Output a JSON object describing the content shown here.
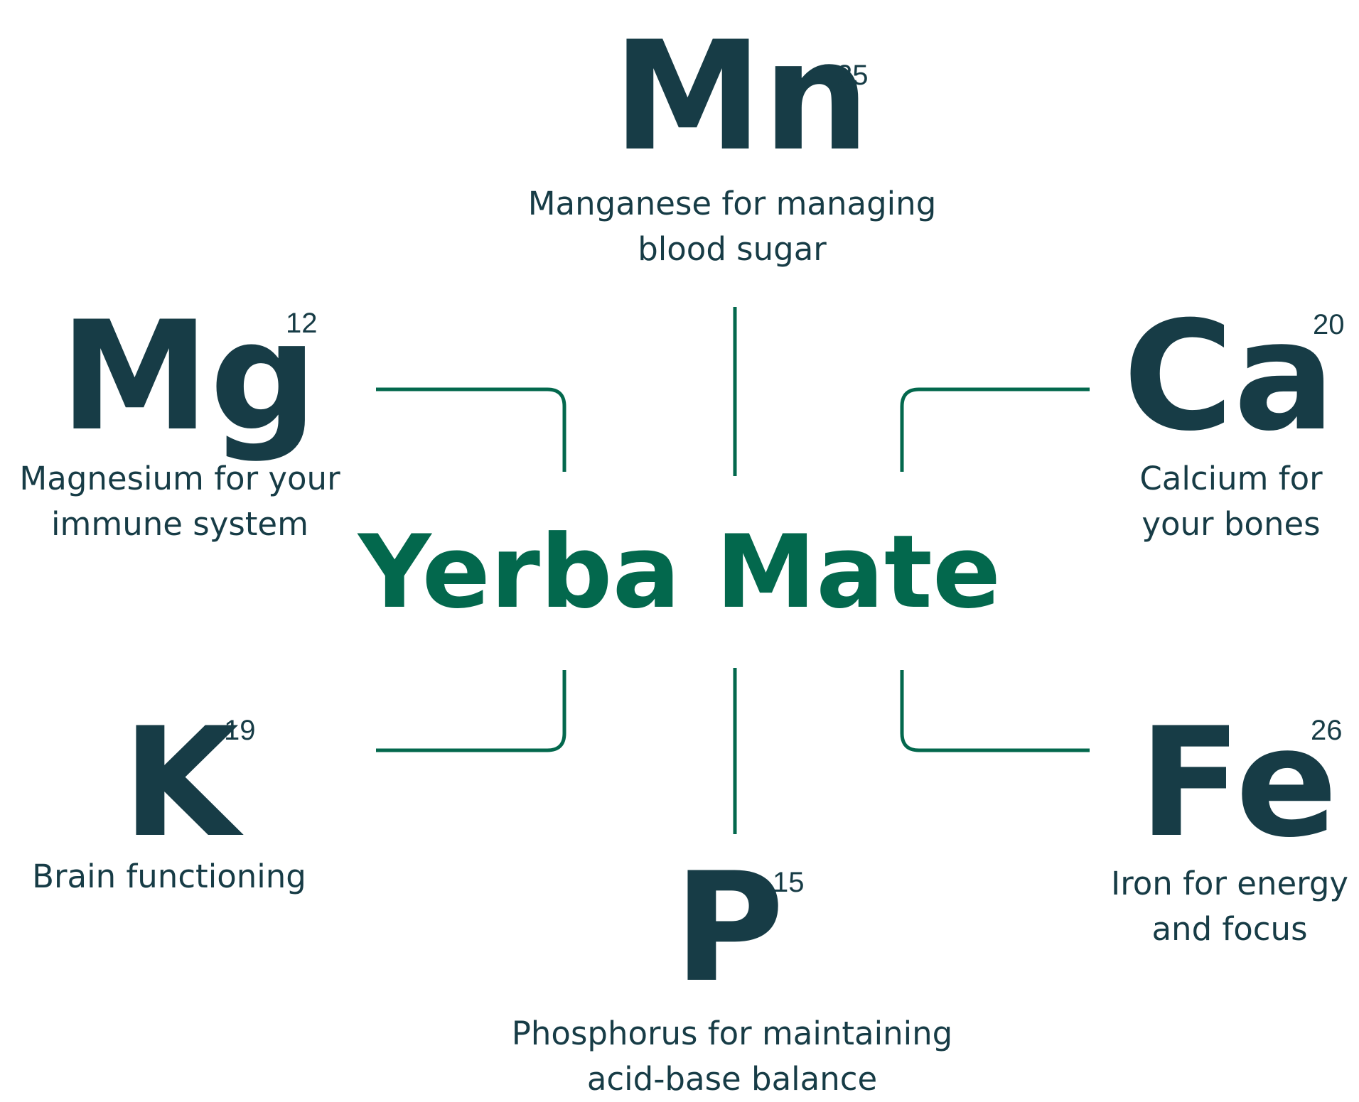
{
  "center": {
    "title": "Yerba Mate",
    "color": "#03684d"
  },
  "text_color": "#173c46",
  "line_color": "#03684d",
  "elements": {
    "mn": {
      "symbol": "Mn",
      "number": "25",
      "description": "Manganese for managing\nblood sugar"
    },
    "mg": {
      "symbol": "Mg",
      "number": "12",
      "description": "Magnesium for your\nimmune system"
    },
    "ca": {
      "symbol": "Ca",
      "number": "20",
      "description": "Calcium for\nyour bones"
    },
    "k": {
      "symbol": "K",
      "number": "19",
      "description": "Brain functioning"
    },
    "fe": {
      "symbol": "Fe",
      "number": "26",
      "description": "Iron for energy\nand focus"
    },
    "p": {
      "symbol": "P",
      "number": "15",
      "description": "Phosphorus for maintaining\nacid-base balance"
    }
  }
}
